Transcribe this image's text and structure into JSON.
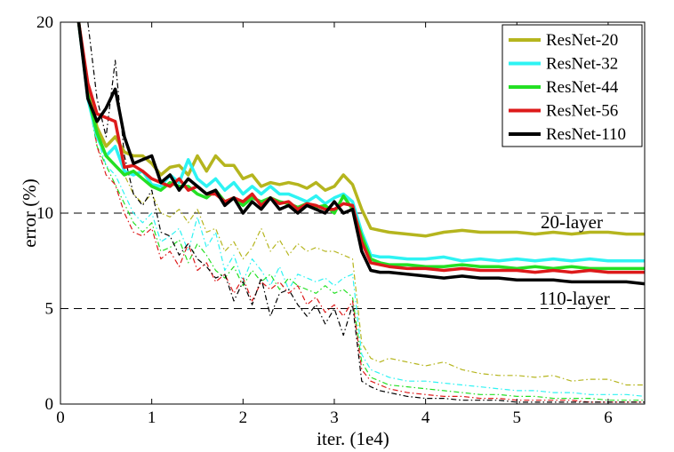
{
  "chart_data": {
    "type": "line",
    "xlabel": "iter. (1e4)",
    "ylabel": "error (%)",
    "xlim": [
      0,
      6.4
    ],
    "ylim": [
      0,
      20
    ],
    "xticks": [
      0,
      1,
      2,
      3,
      4,
      5,
      6
    ],
    "yticks": [
      0,
      5,
      10,
      20
    ],
    "grid": "dashed horizontal lines at y=5, 10, 20",
    "legend_position": "top-right",
    "annotations": [
      {
        "text": "20-layer",
        "x": 5.2,
        "y": 9.2
      },
      {
        "text": "110-layer",
        "x": 5.3,
        "y": 5.4
      }
    ],
    "series": [
      {
        "name": "ResNet-20",
        "color": "#b5b51e",
        "style": "solid",
        "legend": true,
        "x": [
          0.2,
          0.3,
          0.4,
          0.5,
          0.6,
          0.7,
          0.8,
          0.9,
          1.0,
          1.1,
          1.2,
          1.3,
          1.4,
          1.5,
          1.6,
          1.7,
          1.8,
          1.9,
          2.0,
          2.1,
          2.2,
          2.3,
          2.4,
          2.5,
          2.6,
          2.7,
          2.8,
          2.9,
          3.0,
          3.1,
          3.2,
          3.3,
          3.4,
          3.5,
          3.6,
          3.8,
          4.0,
          4.2,
          4.4,
          4.6,
          4.8,
          5.0,
          5.2,
          5.4,
          5.6,
          5.8,
          6.0,
          6.2,
          6.4
        ],
        "y": [
          20,
          16.5,
          14.5,
          13.5,
          14.0,
          13.2,
          13.0,
          13.0,
          12.6,
          12.0,
          12.4,
          12.5,
          12.0,
          13.0,
          12.2,
          13.0,
          12.5,
          12.5,
          11.8,
          12.0,
          11.4,
          11.6,
          11.5,
          11.6,
          11.5,
          11.3,
          11.6,
          11.2,
          11.4,
          12.0,
          11.5,
          10.2,
          9.2,
          9.1,
          9.0,
          8.9,
          8.8,
          9.0,
          9.1,
          9.0,
          9.0,
          9.0,
          8.9,
          9.0,
          8.9,
          9.0,
          9.0,
          8.9,
          8.9
        ]
      },
      {
        "name": "ResNet-32",
        "color": "#2ef3f3",
        "style": "solid",
        "legend": true,
        "x": [
          0.2,
          0.3,
          0.4,
          0.5,
          0.6,
          0.7,
          0.8,
          0.9,
          1.0,
          1.1,
          1.2,
          1.3,
          1.4,
          1.5,
          1.6,
          1.7,
          1.8,
          1.9,
          2.0,
          2.1,
          2.2,
          2.3,
          2.4,
          2.5,
          2.6,
          2.7,
          2.8,
          2.9,
          3.0,
          3.1,
          3.2,
          3.3,
          3.4,
          3.5,
          3.6,
          3.8,
          4.0,
          4.2,
          4.4,
          4.6,
          4.8,
          5.0,
          5.2,
          5.4,
          5.6,
          5.8,
          6.0,
          6.2,
          6.4
        ],
        "y": [
          20,
          16.0,
          14.0,
          13.0,
          13.5,
          12.2,
          12.0,
          12.2,
          11.5,
          11.4,
          12.0,
          11.6,
          12.8,
          11.8,
          11.4,
          11.8,
          11.2,
          11.6,
          11.0,
          11.4,
          11.0,
          11.4,
          11.0,
          11.0,
          10.8,
          10.6,
          10.9,
          10.5,
          10.8,
          11.0,
          10.6,
          9.0,
          7.8,
          7.7,
          7.7,
          7.6,
          7.6,
          7.7,
          7.5,
          7.6,
          7.5,
          7.6,
          7.5,
          7.6,
          7.5,
          7.6,
          7.5,
          7.5,
          7.5
        ]
      },
      {
        "name": "ResNet-44",
        "color": "#24e024",
        "style": "solid",
        "legend": true,
        "x": [
          0.2,
          0.3,
          0.4,
          0.5,
          0.6,
          0.7,
          0.8,
          0.9,
          1.0,
          1.1,
          1.2,
          1.3,
          1.4,
          1.5,
          1.6,
          1.7,
          1.8,
          1.9,
          2.0,
          2.1,
          2.2,
          2.3,
          2.4,
          2.5,
          2.6,
          2.7,
          2.8,
          2.9,
          3.0,
          3.1,
          3.2,
          3.3,
          3.4,
          3.5,
          3.6,
          3.8,
          4.0,
          4.2,
          4.4,
          4.6,
          4.8,
          5.0,
          5.2,
          5.4,
          5.6,
          5.8,
          6.0,
          6.2,
          6.4
        ],
        "y": [
          20,
          16.2,
          14.2,
          13.0,
          12.5,
          12.0,
          12.2,
          11.8,
          11.4,
          11.2,
          11.6,
          11.4,
          11.4,
          11.0,
          10.8,
          11.2,
          10.6,
          10.8,
          10.4,
          10.8,
          10.6,
          10.8,
          10.6,
          10.5,
          10.3,
          10.5,
          10.3,
          10.4,
          10.0,
          10.9,
          10.2,
          8.8,
          7.6,
          7.4,
          7.3,
          7.3,
          7.2,
          7.2,
          7.3,
          7.2,
          7.2,
          7.1,
          7.2,
          7.1,
          7.2,
          7.1,
          7.1,
          7.1,
          7.1
        ]
      },
      {
        "name": "ResNet-56",
        "color": "#dd1a1a",
        "style": "solid",
        "legend": true,
        "x": [
          0.2,
          0.3,
          0.4,
          0.5,
          0.6,
          0.7,
          0.8,
          0.9,
          1.0,
          1.1,
          1.2,
          1.3,
          1.4,
          1.5,
          1.6,
          1.7,
          1.8,
          1.9,
          2.0,
          2.1,
          2.2,
          2.3,
          2.4,
          2.5,
          2.6,
          2.7,
          2.8,
          2.9,
          3.0,
          3.1,
          3.2,
          3.3,
          3.4,
          3.5,
          3.6,
          3.8,
          4.0,
          4.2,
          4.4,
          4.6,
          4.8,
          5.0,
          5.2,
          5.4,
          5.6,
          5.8,
          6.0,
          6.2,
          6.4
        ],
        "y": [
          20,
          16.8,
          15.2,
          15.0,
          14.8,
          12.4,
          12.5,
          12.2,
          11.8,
          11.6,
          11.4,
          11.8,
          11.2,
          11.4,
          11.0,
          11.0,
          10.6,
          10.8,
          10.6,
          11.0,
          10.4,
          10.8,
          10.5,
          10.6,
          10.2,
          10.5,
          10.4,
          10.2,
          10.2,
          10.5,
          10.4,
          8.5,
          7.4,
          7.3,
          7.2,
          7.1,
          7.1,
          7.0,
          7.1,
          7.0,
          7.0,
          7.0,
          6.9,
          7.0,
          6.9,
          7.0,
          6.9,
          6.9,
          6.9
        ]
      },
      {
        "name": "ResNet-110",
        "color": "#000000",
        "style": "solid",
        "legend": true,
        "x": [
          0.2,
          0.3,
          0.4,
          0.5,
          0.6,
          0.7,
          0.8,
          0.9,
          1.0,
          1.1,
          1.2,
          1.3,
          1.4,
          1.5,
          1.6,
          1.7,
          1.8,
          1.9,
          2.0,
          2.1,
          2.2,
          2.3,
          2.4,
          2.5,
          2.6,
          2.7,
          2.8,
          2.9,
          3.0,
          3.1,
          3.2,
          3.3,
          3.4,
          3.5,
          3.6,
          3.8,
          4.0,
          4.2,
          4.4,
          4.6,
          4.8,
          5.0,
          5.2,
          5.4,
          5.6,
          5.8,
          6.0,
          6.2,
          6.4
        ],
        "y": [
          20,
          16.0,
          14.8,
          15.5,
          16.5,
          14.0,
          12.6,
          12.8,
          13.0,
          11.6,
          12.0,
          11.2,
          11.8,
          11.4,
          11.0,
          11.2,
          10.4,
          10.8,
          10.0,
          10.6,
          10.2,
          10.8,
          10.2,
          10.4,
          10.0,
          10.4,
          10.2,
          10.0,
          10.6,
          10.0,
          10.2,
          8.0,
          7.0,
          6.9,
          6.9,
          6.8,
          6.7,
          6.6,
          6.7,
          6.6,
          6.6,
          6.5,
          6.5,
          6.5,
          6.4,
          6.4,
          6.4,
          6.4,
          6.3
        ]
      },
      {
        "name": "ResNet-20 (train)",
        "color": "#b5b51e",
        "style": "dashdot",
        "legend": false,
        "x": [
          0.3,
          0.4,
          0.5,
          0.6,
          0.7,
          0.8,
          0.9,
          1.0,
          1.1,
          1.2,
          1.3,
          1.4,
          1.5,
          1.6,
          1.7,
          1.8,
          1.9,
          2.0,
          2.1,
          2.2,
          2.3,
          2.4,
          2.5,
          2.6,
          2.7,
          2.8,
          2.9,
          3.0,
          3.1,
          3.2,
          3.3,
          3.4,
          3.5,
          3.6,
          3.8,
          4.0,
          4.2,
          4.4,
          4.6,
          4.8,
          5.0,
          5.2,
          5.4,
          5.6,
          5.8,
          6.0,
          6.2,
          6.4
        ],
        "y": [
          17.0,
          14.5,
          13.0,
          12.5,
          12.0,
          11.0,
          10.5,
          11.0,
          10.0,
          9.8,
          10.2,
          9.5,
          10.2,
          9.0,
          9.2,
          8.0,
          8.5,
          7.6,
          8.2,
          9.2,
          8.0,
          8.6,
          7.8,
          8.4,
          8.0,
          8.2,
          8.0,
          8.0,
          7.8,
          7.6,
          3.2,
          2.4,
          2.2,
          2.4,
          2.2,
          2.0,
          2.2,
          1.8,
          1.6,
          1.5,
          1.5,
          1.4,
          1.5,
          1.2,
          1.3,
          1.3,
          1.0,
          1.0
        ]
      },
      {
        "name": "ResNet-32 (train)",
        "color": "#2ef3f3",
        "style": "dashdot",
        "legend": false,
        "x": [
          0.3,
          0.4,
          0.5,
          0.6,
          0.7,
          0.8,
          0.9,
          1.0,
          1.1,
          1.2,
          1.3,
          1.4,
          1.5,
          1.6,
          1.7,
          1.8,
          1.9,
          2.0,
          2.1,
          2.2,
          2.3,
          2.4,
          2.5,
          2.6,
          2.7,
          2.8,
          2.9,
          3.0,
          3.1,
          3.2,
          3.3,
          3.4,
          3.5,
          3.6,
          3.8,
          4.0,
          4.2,
          4.4,
          4.6,
          4.8,
          5.0,
          5.2,
          5.4,
          5.6,
          5.8,
          6.0,
          6.2,
          6.4
        ],
        "y": [
          16.5,
          14.0,
          12.5,
          12.0,
          11.0,
          10.0,
          9.5,
          10.0,
          8.5,
          8.8,
          9.2,
          8.0,
          9.8,
          8.2,
          9.0,
          7.0,
          7.8,
          6.4,
          7.6,
          7.0,
          6.2,
          7.2,
          6.0,
          6.8,
          6.6,
          6.4,
          6.6,
          6.2,
          6.6,
          6.8,
          2.6,
          1.8,
          1.6,
          1.4,
          1.2,
          1.2,
          1.1,
          1.0,
          0.9,
          0.8,
          0.7,
          0.7,
          0.6,
          0.6,
          0.5,
          0.5,
          0.5,
          0.4
        ]
      },
      {
        "name": "ResNet-44 (train)",
        "color": "#24e024",
        "style": "dashdot",
        "legend": false,
        "x": [
          0.3,
          0.4,
          0.5,
          0.6,
          0.7,
          0.8,
          0.9,
          1.0,
          1.1,
          1.2,
          1.3,
          1.4,
          1.5,
          1.6,
          1.7,
          1.8,
          1.9,
          2.0,
          2.1,
          2.2,
          2.3,
          2.4,
          2.5,
          2.6,
          2.7,
          2.8,
          2.9,
          3.0,
          3.1,
          3.2,
          3.3,
          3.4,
          3.5,
          3.6,
          3.8,
          4.0,
          4.2,
          4.4,
          4.6,
          4.8,
          5.0,
          5.2,
          5.4,
          5.6,
          5.8,
          6.0,
          6.2,
          6.4
        ],
        "y": [
          16.0,
          13.5,
          12.5,
          11.5,
          10.5,
          9.5,
          9.0,
          9.5,
          8.0,
          8.2,
          8.6,
          7.4,
          8.4,
          7.8,
          7.0,
          6.6,
          7.2,
          6.2,
          7.0,
          6.4,
          6.8,
          6.0,
          6.6,
          6.2,
          6.0,
          5.8,
          6.2,
          5.8,
          6.0,
          5.6,
          2.2,
          1.4,
          1.2,
          1.0,
          0.9,
          0.8,
          0.7,
          0.6,
          0.5,
          0.5,
          0.4,
          0.4,
          0.3,
          0.3,
          0.3,
          0.2,
          0.2,
          0.2
        ]
      },
      {
        "name": "ResNet-56 (train)",
        "color": "#dd1a1a",
        "style": "dashdot",
        "legend": false,
        "x": [
          0.3,
          0.4,
          0.5,
          0.6,
          0.7,
          0.8,
          0.9,
          1.0,
          1.1,
          1.2,
          1.3,
          1.4,
          1.5,
          1.6,
          1.7,
          1.8,
          1.9,
          2.0,
          2.1,
          2.2,
          2.3,
          2.4,
          2.5,
          2.6,
          2.7,
          2.8,
          2.9,
          3.0,
          3.1,
          3.2,
          3.3,
          3.4,
          3.5,
          3.6,
          3.8,
          4.0,
          4.2,
          4.4,
          4.6,
          4.8,
          5.0,
          5.2,
          5.4,
          5.6,
          5.8,
          6.0,
          6.2,
          6.4
        ],
        "y": [
          16.5,
          13.5,
          12.0,
          11.5,
          10.0,
          9.0,
          8.8,
          9.2,
          7.6,
          8.0,
          7.2,
          8.4,
          7.0,
          7.4,
          6.4,
          6.8,
          5.8,
          6.6,
          5.4,
          6.4,
          6.0,
          6.4,
          5.8,
          6.2,
          5.2,
          5.6,
          4.8,
          5.2,
          4.6,
          5.4,
          1.8,
          1.2,
          1.0,
          0.8,
          0.6,
          0.5,
          0.4,
          0.4,
          0.3,
          0.3,
          0.2,
          0.2,
          0.2,
          0.2,
          0.1,
          0.1,
          0.1,
          0.1
        ]
      },
      {
        "name": "ResNet-110 (train)",
        "color": "#000000",
        "style": "dashdot",
        "legend": false,
        "x": [
          0.3,
          0.4,
          0.5,
          0.6,
          0.7,
          0.8,
          0.9,
          1.0,
          1.1,
          1.2,
          1.3,
          1.4,
          1.5,
          1.6,
          1.7,
          1.8,
          1.9,
          2.0,
          2.1,
          2.2,
          2.3,
          2.4,
          2.5,
          2.6,
          2.7,
          2.8,
          2.9,
          3.0,
          3.1,
          3.2,
          3.3,
          3.4,
          3.5,
          3.6,
          3.8,
          4.0,
          4.2,
          4.4,
          4.6,
          4.8,
          5.0,
          5.2,
          5.4,
          5.6,
          5.8,
          6.0,
          6.2,
          6.4
        ],
        "y": [
          20.0,
          16.0,
          14.0,
          18.0,
          13.0,
          11.0,
          10.4,
          11.2,
          9.0,
          8.8,
          7.8,
          8.4,
          7.6,
          7.2,
          6.6,
          6.8,
          5.4,
          6.4,
          5.2,
          6.6,
          4.6,
          5.8,
          6.0,
          5.2,
          4.6,
          5.2,
          4.2,
          5.0,
          3.6,
          5.2,
          1.2,
          0.9,
          0.7,
          0.6,
          0.4,
          0.3,
          0.3,
          0.2,
          0.2,
          0.2,
          0.1,
          0.1,
          0.1,
          0.1,
          0.1,
          0.1,
          0.1,
          0.1
        ]
      }
    ]
  }
}
